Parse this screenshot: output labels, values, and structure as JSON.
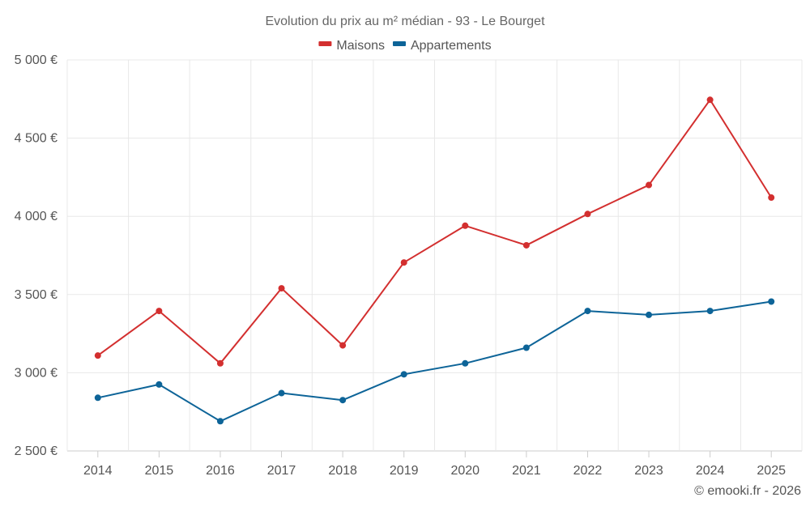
{
  "chart_data": {
    "type": "line",
    "title": "Evolution du prix au m² médian - 93 - Le Bourget",
    "xlabel": "",
    "ylabel": "",
    "categories": [
      "2014",
      "2015",
      "2016",
      "2017",
      "2018",
      "2019",
      "2020",
      "2021",
      "2022",
      "2023",
      "2024",
      "2025"
    ],
    "ylim": [
      2500,
      5000
    ],
    "yticks": [
      2500,
      3000,
      3500,
      4000,
      4500,
      5000
    ],
    "ytick_labels": [
      "2 500 €",
      "3 000 €",
      "3 500 €",
      "4 000 €",
      "4 500 €",
      "5 000 €"
    ],
    "grid": true,
    "legend_position": "top-center",
    "series": [
      {
        "name": "Maisons",
        "color": "#d32f2f",
        "values": [
          3110,
          3395,
          3060,
          3540,
          3175,
          3705,
          3940,
          3815,
          4015,
          4200,
          4745,
          4120
        ]
      },
      {
        "name": "Appartements",
        "color": "#0d6498",
        "values": [
          2840,
          2925,
          2690,
          2870,
          2825,
          2990,
          3060,
          3160,
          3395,
          3370,
          3395,
          3455
        ]
      }
    ]
  },
  "credit": "© emooki.fr - 2026"
}
